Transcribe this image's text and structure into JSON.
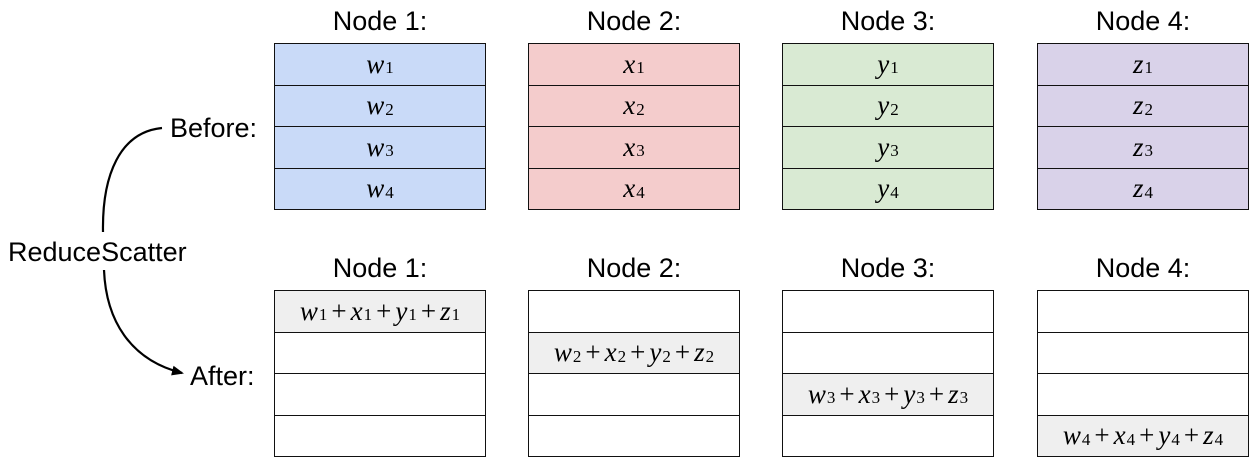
{
  "colors": {
    "node1": "#c9daf8",
    "node2": "#f4cccc",
    "node3": "#d9ead3",
    "node4": "#d9d2e9",
    "result": "#efefef",
    "empty": "#ffffff",
    "border": "#111111"
  },
  "labels": {
    "before": "Before:",
    "after": "After:",
    "operation": "ReduceScatter"
  },
  "before": {
    "nodes": [
      {
        "title": "Node 1:",
        "cells": [
          {
            "v": "w",
            "s": "1"
          },
          {
            "v": "w",
            "s": "2"
          },
          {
            "v": "w",
            "s": "3"
          },
          {
            "v": "w",
            "s": "4"
          }
        ]
      },
      {
        "title": "Node 2:",
        "cells": [
          {
            "v": "x",
            "s": "1"
          },
          {
            "v": "x",
            "s": "2"
          },
          {
            "v": "x",
            "s": "3"
          },
          {
            "v": "x",
            "s": "4"
          }
        ]
      },
      {
        "title": "Node 3:",
        "cells": [
          {
            "v": "y",
            "s": "1"
          },
          {
            "v": "y",
            "s": "2"
          },
          {
            "v": "y",
            "s": "3"
          },
          {
            "v": "y",
            "s": "4"
          }
        ]
      },
      {
        "title": "Node 4:",
        "cells": [
          {
            "v": "z",
            "s": "1"
          },
          {
            "v": "z",
            "s": "2"
          },
          {
            "v": "z",
            "s": "3"
          },
          {
            "v": "z",
            "s": "4"
          }
        ]
      }
    ]
  },
  "after": {
    "nodes": [
      {
        "title": "Node 1:",
        "filled_row": 1,
        "sum": [
          {
            "v": "w",
            "s": "1"
          },
          {
            "v": "x",
            "s": "1"
          },
          {
            "v": "y",
            "s": "1"
          },
          {
            "v": "z",
            "s": "1"
          }
        ]
      },
      {
        "title": "Node 2:",
        "filled_row": 2,
        "sum": [
          {
            "v": "w",
            "s": "2"
          },
          {
            "v": "x",
            "s": "2"
          },
          {
            "v": "y",
            "s": "2"
          },
          {
            "v": "z",
            "s": "2"
          }
        ]
      },
      {
        "title": "Node 3:",
        "filled_row": 3,
        "sum": [
          {
            "v": "w",
            "s": "3"
          },
          {
            "v": "x",
            "s": "3"
          },
          {
            "v": "y",
            "s": "3"
          },
          {
            "v": "z",
            "s": "3"
          }
        ]
      },
      {
        "title": "Node 4:",
        "filled_row": 4,
        "sum": [
          {
            "v": "w",
            "s": "4"
          },
          {
            "v": "x",
            "s": "4"
          },
          {
            "v": "y",
            "s": "4"
          },
          {
            "v": "z",
            "s": "4"
          }
        ]
      }
    ],
    "plus_symbol": "+"
  }
}
